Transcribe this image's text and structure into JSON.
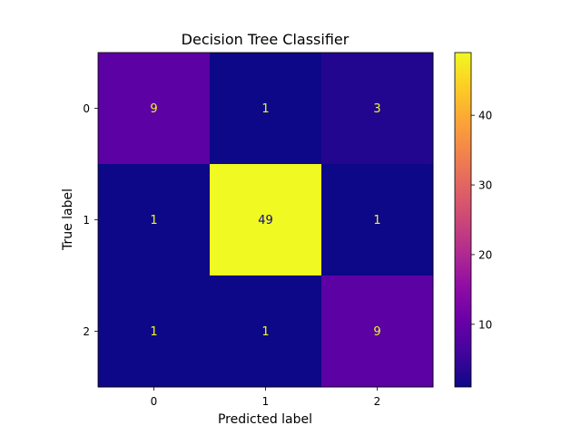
{
  "chart_data": {
    "type": "heatmap",
    "title": "Decision Tree Classifier",
    "xlabel": "Predicted label",
    "ylabel": "True label",
    "x_categories": [
      "0",
      "1",
      "2"
    ],
    "y_categories": [
      "0",
      "1",
      "2"
    ],
    "values": [
      [
        9,
        1,
        3
      ],
      [
        1,
        49,
        1
      ],
      [
        1,
        1,
        9
      ]
    ],
    "colormap": "plasma",
    "colorbar": {
      "min": 1,
      "max": 49,
      "ticks": [
        10,
        20,
        30,
        40
      ],
      "tick_labels": [
        "10",
        "20",
        "30",
        "40"
      ]
    },
    "label_colors": {
      "on_dark": "#f0f921",
      "on_light": "#0d0887"
    }
  }
}
